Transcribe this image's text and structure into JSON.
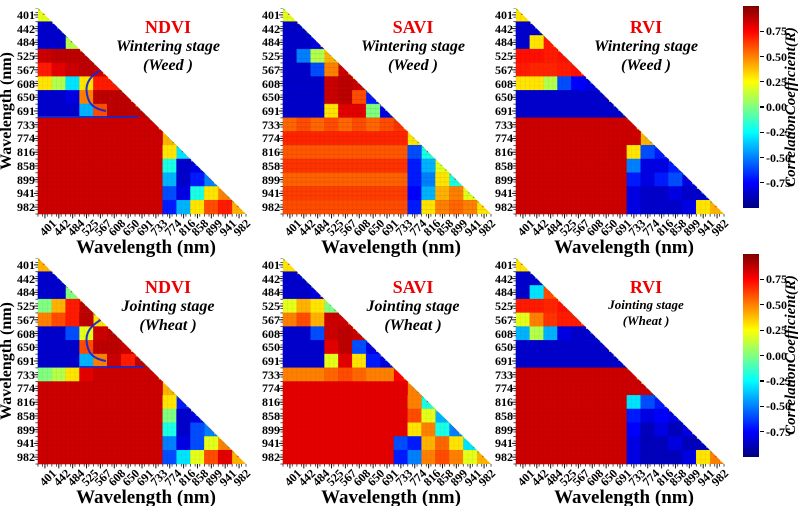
{
  "figure": {
    "background": "#ffffff",
    "x_axis_title": "Wavelength (nm)",
    "y_axis_title": "Wavelength (nm)",
    "index_title_color": "#ee0000",
    "wavelengths": [
      "401",
      "442",
      "484",
      "525",
      "567",
      "608",
      "650",
      "691",
      "733",
      "774",
      "816",
      "858",
      "899",
      "941",
      "982"
    ]
  },
  "colorbar": {
    "label": "CorrelationCoefficient(R)",
    "colormap": "jet",
    "vmin": -1,
    "vmax": 1,
    "ticks": [
      {
        "label": "0.75",
        "value": 0.75
      },
      {
        "label": "0.50",
        "value": 0.5
      },
      {
        "label": "0.25",
        "value": 0.25
      },
      {
        "label": "0.00",
        "value": 0.0
      },
      {
        "label": "-0.25",
        "value": -0.25
      },
      {
        "label": "-0.50",
        "value": -0.5
      },
      {
        "label": "-0.75",
        "value": -0.75
      }
    ]
  },
  "chart_data": {
    "type": "heatmap",
    "shape": "lower-triangular-correlation-matrix",
    "x_categories": [
      401,
      442,
      484,
      525,
      567,
      608,
      650,
      691,
      733,
      774,
      816,
      858,
      899,
      941,
      982
    ],
    "y_categories": [
      401,
      442,
      484,
      525,
      567,
      608,
      650,
      691,
      733,
      774,
      816,
      858,
      899,
      941,
      982
    ],
    "value_range": [
      -1,
      1
    ],
    "panels": [
      {
        "id": "ndvi-wintering",
        "index_name": "NDVI",
        "stage": "Wintering stage",
        "crop": "(Weed )",
        "row": 0,
        "col": 0,
        "hook": true,
        "separator_from": 0,
        "separator_to": 7.2,
        "small_subtitle": false,
        "matrix": [
          [
            0.2
          ],
          [
            -0.85,
            -0.85
          ],
          [
            -0.85,
            -0.85,
            0.1
          ],
          [
            0.85,
            0.88,
            0.88,
            0.88
          ],
          [
            0.7,
            0.8,
            0.85,
            0.88,
            0.85
          ],
          [
            0.3,
            0.1,
            -0.3,
            0.3,
            0.7,
            0.7
          ],
          [
            -0.85,
            -0.85,
            -0.8,
            0.5,
            0.88,
            0.88,
            0.88
          ],
          [
            -0.85,
            -0.85,
            -0.85,
            -0.4,
            0.6,
            0.88,
            0.88,
            0.88
          ],
          [
            0.85,
            0.85,
            0.85,
            0.85,
            0.85,
            0.85,
            0.85,
            0.85,
            0.85
          ],
          [
            0.85,
            0.85,
            0.85,
            0.85,
            0.85,
            0.85,
            0.85,
            0.85,
            0.85,
            0.4
          ],
          [
            0.85,
            0.85,
            0.85,
            0.85,
            0.85,
            0.85,
            0.85,
            0.85,
            0.85,
            0.3,
            -0.3
          ],
          [
            0.85,
            0.85,
            0.85,
            0.85,
            0.85,
            0.85,
            0.85,
            0.85,
            0.85,
            -0.2,
            -0.85,
            -0.8
          ],
          [
            0.85,
            0.85,
            0.85,
            0.85,
            0.85,
            0.85,
            0.85,
            0.85,
            0.85,
            -0.4,
            -0.85,
            -0.7,
            -0.5
          ],
          [
            0.85,
            0.85,
            0.85,
            0.85,
            0.85,
            0.85,
            0.85,
            0.85,
            0.85,
            -0.6,
            -0.8,
            -0.2,
            0.3,
            0.5
          ],
          [
            0.85,
            0.85,
            0.85,
            0.85,
            0.85,
            0.85,
            0.85,
            0.85,
            0.85,
            -0.7,
            -0.4,
            0.3,
            0.6,
            0.7,
            0.4
          ]
        ]
      },
      {
        "id": "savi-wintering",
        "index_name": "SAVI",
        "stage": "Wintering stage",
        "crop": "(Weed )",
        "row": 0,
        "col": 1,
        "hook": false,
        "separator_from": null,
        "separator_to": null,
        "small_subtitle": false,
        "matrix": [
          [
            0.2
          ],
          [
            -0.85,
            -0.85
          ],
          [
            -0.85,
            -0.85,
            -0.8
          ],
          [
            -0.85,
            -0.5,
            0.1,
            0.4
          ],
          [
            -0.85,
            -0.85,
            -0.6,
            0.5,
            0.85
          ],
          [
            -0.85,
            -0.85,
            -0.85,
            0.85,
            0.88,
            0.85
          ],
          [
            -0.85,
            -0.85,
            -0.85,
            0.85,
            0.88,
            0.6,
            -0.7
          ],
          [
            -0.85,
            -0.85,
            -0.85,
            0.3,
            0.8,
            0.8,
            0.0,
            -0.8
          ],
          [
            0.55,
            0.6,
            0.55,
            0.6,
            0.55,
            0.6,
            0.55,
            0.6,
            0.65
          ],
          [
            0.68,
            0.68,
            0.68,
            0.68,
            0.68,
            0.68,
            0.68,
            0.68,
            0.68,
            0.3
          ],
          [
            0.58,
            0.58,
            0.58,
            0.58,
            0.58,
            0.58,
            0.58,
            0.58,
            0.58,
            -0.6,
            -0.2
          ],
          [
            0.65,
            0.65,
            0.65,
            0.65,
            0.65,
            0.65,
            0.65,
            0.65,
            0.65,
            -0.7,
            -0.4,
            0.2
          ],
          [
            0.56,
            0.56,
            0.56,
            0.56,
            0.56,
            0.56,
            0.56,
            0.56,
            0.56,
            -0.7,
            -0.5,
            0.3,
            -0.2
          ],
          [
            0.63,
            0.63,
            0.63,
            0.63,
            0.63,
            0.63,
            0.63,
            0.63,
            0.63,
            -0.75,
            -0.4,
            0.4,
            0.5,
            0.2
          ],
          [
            0.6,
            0.6,
            0.6,
            0.6,
            0.6,
            0.6,
            0.6,
            0.6,
            0.6,
            -0.7,
            0.3,
            0.5,
            0.55,
            0.5,
            0.3
          ]
        ]
      },
      {
        "id": "rvi-wintering",
        "index_name": "RVI",
        "stage": "Wintering stage",
        "crop": "(Weed )",
        "row": 0,
        "col": 2,
        "hook": false,
        "separator_from": null,
        "separator_to": null,
        "small_subtitle": false,
        "matrix": [
          [
            0.3
          ],
          [
            -0.85,
            -0.85
          ],
          [
            -0.85,
            0.3,
            0.7
          ],
          [
            0.72,
            0.72,
            0.7,
            0.72
          ],
          [
            0.7,
            0.68,
            0.68,
            0.7,
            0.72
          ],
          [
            0.3,
            0.3,
            0.1,
            -0.6,
            -0.75,
            -0.8
          ],
          [
            -0.85,
            -0.85,
            -0.85,
            -0.85,
            -0.85,
            -0.85,
            -0.85
          ],
          [
            -0.85,
            -0.85,
            -0.85,
            -0.85,
            -0.85,
            -0.85,
            -0.85,
            -0.85
          ],
          [
            0.85,
            0.85,
            0.85,
            0.85,
            0.85,
            0.85,
            0.85,
            0.85,
            0.85
          ],
          [
            0.85,
            0.85,
            0.85,
            0.85,
            0.85,
            0.85,
            0.85,
            0.85,
            0.85,
            0.4
          ],
          [
            0.85,
            0.85,
            0.85,
            0.85,
            0.85,
            0.85,
            0.85,
            0.85,
            0.3,
            -0.6,
            -0.7
          ],
          [
            0.85,
            0.85,
            0.85,
            0.85,
            0.85,
            0.85,
            0.85,
            0.85,
            -0.5,
            -0.8,
            -0.8,
            -0.7
          ],
          [
            0.85,
            0.85,
            0.85,
            0.85,
            0.85,
            0.85,
            0.85,
            0.85,
            -0.7,
            -0.8,
            -0.7,
            -0.6,
            -0.8
          ],
          [
            0.85,
            0.85,
            0.85,
            0.85,
            0.85,
            0.85,
            0.85,
            0.85,
            -0.8,
            -0.85,
            -0.85,
            -0.8,
            -0.85,
            -0.85
          ],
          [
            0.85,
            0.85,
            0.85,
            0.85,
            0.85,
            0.85,
            0.85,
            0.85,
            -0.8,
            -0.85,
            -0.85,
            -0.85,
            -0.8,
            0.3,
            0.4
          ]
        ]
      },
      {
        "id": "ndvi-jointing",
        "index_name": "NDVI",
        "stage": "Jointing stage",
        "crop": "(Wheat )",
        "row": 1,
        "col": 0,
        "hook": true,
        "separator_from": 3,
        "separator_to": 7.6,
        "small_subtitle": false,
        "matrix": [
          [
            0.4
          ],
          [
            -0.85,
            -0.85
          ],
          [
            -0.85,
            -0.85,
            0.0
          ],
          [
            0.0,
            0.4,
            0.7,
            0.88
          ],
          [
            0.5,
            0.6,
            0.7,
            0.88,
            0.3
          ],
          [
            -0.85,
            -0.85,
            -0.6,
            0.2,
            0.85,
            0.88
          ],
          [
            -0.85,
            -0.85,
            -0.85,
            0.6,
            0.88,
            0.88,
            0.85
          ],
          [
            -0.85,
            -0.85,
            -0.85,
            -0.4,
            0.5,
            0.85,
            0.7,
            0.88
          ],
          [
            0.0,
            0.1,
            0.3,
            0.8,
            0.85,
            0.85,
            0.85,
            0.85,
            0.85
          ],
          [
            0.85,
            0.85,
            0.85,
            0.85,
            0.85,
            0.85,
            0.85,
            0.85,
            0.85,
            0.4
          ],
          [
            0.85,
            0.85,
            0.85,
            0.85,
            0.85,
            0.85,
            0.85,
            0.85,
            0.85,
            0.3,
            -0.7
          ],
          [
            0.85,
            0.85,
            0.85,
            0.85,
            0.85,
            0.85,
            0.85,
            0.85,
            0.85,
            0.0,
            -0.85,
            -0.8
          ],
          [
            0.85,
            0.85,
            0.85,
            0.85,
            0.85,
            0.85,
            0.85,
            0.85,
            0.85,
            -0.2,
            -0.85,
            -0.6,
            -0.5
          ],
          [
            0.85,
            0.85,
            0.85,
            0.85,
            0.85,
            0.85,
            0.85,
            0.85,
            0.85,
            -0.5,
            -0.8,
            -0.6,
            0.2,
            0.5
          ],
          [
            0.85,
            0.85,
            0.85,
            0.85,
            0.85,
            0.85,
            0.85,
            0.85,
            0.85,
            -0.6,
            -0.3,
            0.2,
            0.6,
            0.8,
            0.4
          ]
        ]
      },
      {
        "id": "savi-jointing",
        "index_name": "SAVI",
        "stage": "Jointing stage",
        "crop": "(Wheat )",
        "row": 1,
        "col": 1,
        "hook": false,
        "separator_from": null,
        "separator_to": null,
        "small_subtitle": false,
        "matrix": [
          [
            0.3
          ],
          [
            -0.85,
            -0.85
          ],
          [
            -0.85,
            -0.85,
            -0.8
          ],
          [
            0.2,
            0.4,
            0.3,
            0.0
          ],
          [
            0.5,
            0.6,
            0.4,
            0.85,
            0.85
          ],
          [
            -0.85,
            -0.85,
            -0.6,
            0.85,
            0.88,
            0.85
          ],
          [
            -0.85,
            -0.85,
            -0.85,
            0.8,
            0.88,
            -0.6,
            -0.8
          ],
          [
            -0.85,
            -0.85,
            -0.85,
            0.2,
            0.8,
            0.3,
            -0.7,
            -0.8
          ],
          [
            0.5,
            0.5,
            0.5,
            0.55,
            0.6,
            0.55,
            0.5,
            0.5,
            0.75
          ],
          [
            0.8,
            0.8,
            0.8,
            0.8,
            0.8,
            0.8,
            0.8,
            0.8,
            0.8,
            0.5
          ],
          [
            0.8,
            0.8,
            0.8,
            0.8,
            0.8,
            0.8,
            0.8,
            0.8,
            0.8,
            0.5,
            -0.2
          ],
          [
            0.8,
            0.8,
            0.8,
            0.8,
            0.8,
            0.8,
            0.8,
            0.8,
            0.8,
            0.6,
            0.2,
            -0.4
          ],
          [
            0.8,
            0.8,
            0.8,
            0.8,
            0.8,
            0.8,
            0.8,
            0.8,
            0.8,
            0.3,
            0.5,
            -0.2,
            -0.5
          ],
          [
            0.8,
            0.8,
            0.8,
            0.8,
            0.8,
            0.8,
            0.8,
            0.8,
            -0.6,
            -0.7,
            0.4,
            0.55,
            0.3,
            -0.3
          ],
          [
            0.8,
            0.8,
            0.8,
            0.8,
            0.8,
            0.8,
            0.8,
            0.8,
            -0.7,
            -0.5,
            0.5,
            0.6,
            0.5,
            0.2,
            0.4
          ]
        ]
      },
      {
        "id": "rvi-jointing",
        "index_name": "RVI",
        "stage": "Jointing stage",
        "crop": "(Wheat )",
        "row": 1,
        "col": 2,
        "hook": false,
        "separator_from": null,
        "separator_to": null,
        "small_subtitle": true,
        "matrix": [
          [
            0.3
          ],
          [
            -0.85,
            -0.85
          ],
          [
            -0.85,
            -0.3,
            0.6
          ],
          [
            0.7,
            0.7,
            0.68,
            0.72
          ],
          [
            0.2,
            0.5,
            0.65,
            0.7,
            0.7
          ],
          [
            -0.4,
            0.1,
            -0.4,
            -0.8,
            -0.85,
            -0.85
          ],
          [
            -0.85,
            -0.85,
            -0.85,
            -0.85,
            -0.85,
            -0.85,
            -0.85
          ],
          [
            -0.85,
            -0.85,
            -0.85,
            -0.85,
            -0.85,
            -0.85,
            -0.85,
            -0.85
          ],
          [
            0.85,
            0.85,
            0.85,
            0.85,
            0.85,
            0.85,
            0.85,
            0.85,
            0.85
          ],
          [
            0.85,
            0.85,
            0.85,
            0.85,
            0.85,
            0.85,
            0.85,
            0.85,
            0.85,
            0.85
          ],
          [
            0.85,
            0.85,
            0.85,
            0.85,
            0.85,
            0.85,
            0.85,
            0.85,
            -0.3,
            -0.6,
            -0.7
          ],
          [
            0.85,
            0.85,
            0.85,
            0.85,
            0.85,
            0.85,
            0.85,
            0.85,
            -0.7,
            -0.8,
            -0.75,
            -0.8
          ],
          [
            0.85,
            0.85,
            0.85,
            0.85,
            0.85,
            0.85,
            0.85,
            0.85,
            -0.75,
            -0.88,
            -0.8,
            -0.88,
            -0.8
          ],
          [
            0.85,
            0.85,
            0.85,
            0.85,
            0.85,
            0.85,
            0.85,
            0.85,
            -0.8,
            -0.88,
            -0.88,
            -0.8,
            -0.88,
            -0.88
          ],
          [
            0.85,
            0.85,
            0.85,
            0.85,
            0.85,
            0.85,
            0.85,
            0.85,
            -0.8,
            -0.88,
            -0.88,
            -0.88,
            -0.8,
            0.3,
            0.5
          ]
        ]
      }
    ]
  }
}
